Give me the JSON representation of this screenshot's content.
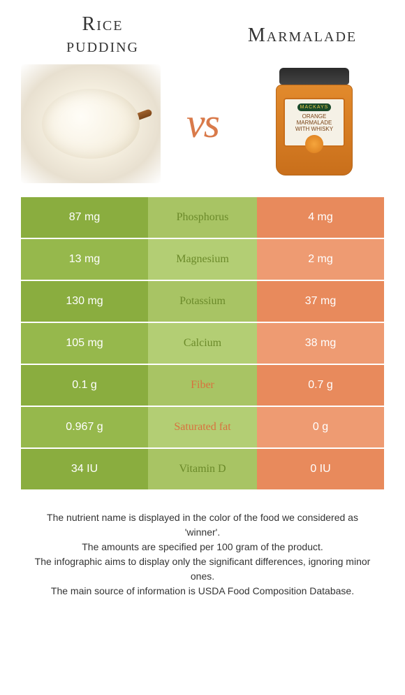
{
  "titles": {
    "left_line1": "Rice",
    "left_line2": "pudding",
    "right": "Marmalade"
  },
  "vs": "vs",
  "jar": {
    "brand": "MACKAYS",
    "label_line1": "ORANGE",
    "label_line2": "MARMALADE",
    "label_line3": "WITH WHISKY"
  },
  "colors": {
    "left": "#8aad3f",
    "left_alt": "#96b84c",
    "mid": "#a8c464",
    "mid_alt": "#b3ce74",
    "right": "#e88a5c",
    "right_alt": "#ee9b72",
    "winner_left_text": "#6b8a2a",
    "winner_right_text": "#d9713e"
  },
  "rows": [
    {
      "left": "87 mg",
      "label": "Phosphorus",
      "right": "4 mg",
      "winner": "left"
    },
    {
      "left": "13 mg",
      "label": "Magnesium",
      "right": "2 mg",
      "winner": "left"
    },
    {
      "left": "130 mg",
      "label": "Potassium",
      "right": "37 mg",
      "winner": "left"
    },
    {
      "left": "105 mg",
      "label": "Calcium",
      "right": "38 mg",
      "winner": "left"
    },
    {
      "left": "0.1 g",
      "label": "Fiber",
      "right": "0.7 g",
      "winner": "right"
    },
    {
      "left": "0.967 g",
      "label": "Saturated fat",
      "right": "0 g",
      "winner": "right"
    },
    {
      "left": "34 IU",
      "label": "Vitamin D",
      "right": "0 IU",
      "winner": "left"
    }
  ],
  "footer": {
    "line1": "The nutrient name is displayed in the color of the food we considered as 'winner'.",
    "line2": "The amounts are specified per 100 gram of the product.",
    "line3": "The infographic aims to display only the significant differences, ignoring minor ones.",
    "line4": "The main source of information is USDA Food Composition Database."
  }
}
